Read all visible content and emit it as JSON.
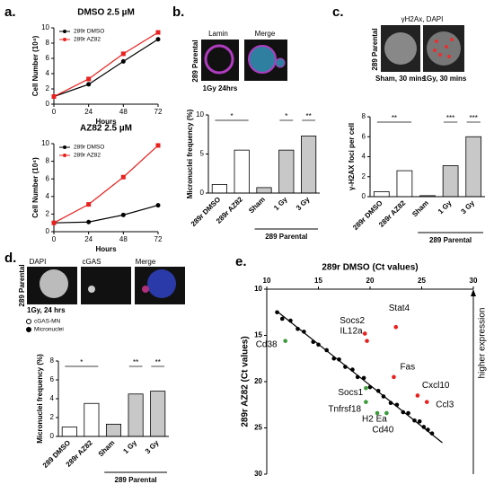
{
  "panel_labels": [
    "a.",
    "b.",
    "c.",
    "d.",
    "e."
  ],
  "image_labels": {
    "b_lamin": "Lamin",
    "b_merge": "Merge",
    "b_side": "289 Parental",
    "b_caption": "1Gy 24hrs",
    "c_title": "γH2Ax, DAPI",
    "c_side": "289 Parental",
    "c_sham": "Sham, 30 mins",
    "c_gy": "1Gy, 30 mins",
    "d_dapi": "DAPI",
    "d_cgas": "cGAS",
    "d_merge": "Merge",
    "d_side": "289 Parental",
    "d_caption": "1Gy, 24 hrs"
  },
  "chart_data": [
    {
      "type": "line",
      "title": "DMSO 2.5 µM",
      "xlabel": "Hours",
      "ylabel": "Cell Number (10⁴)",
      "x": [
        0,
        24,
        48,
        72
      ],
      "xlim": [
        0,
        72
      ],
      "xticks": [
        0,
        24,
        48,
        72
      ],
      "ylim": [
        0,
        10
      ],
      "yticks": [
        0,
        2,
        4,
        6,
        8,
        10
      ],
      "legend": "upper left",
      "series": [
        {
          "name": "289r DMSO",
          "color": "#000000",
          "marker": "circle",
          "values": [
            1,
            2.6,
            5.6,
            8.5
          ]
        },
        {
          "name": "289r AZ82",
          "color": "#e8211f",
          "marker": "square",
          "values": [
            1,
            3.3,
            6.6,
            9.4
          ]
        }
      ]
    },
    {
      "type": "line",
      "title": "AZ82 2.5 µM",
      "xlabel": "Hours",
      "ylabel": "Cell Number (10⁴)",
      "x": [
        0,
        24,
        48,
        72
      ],
      "xlim": [
        0,
        72
      ],
      "xticks": [
        0,
        24,
        48,
        72
      ],
      "ylim": [
        0,
        10
      ],
      "yticks": [
        0,
        2,
        4,
        6,
        8,
        10
      ],
      "legend": "upper left",
      "series": [
        {
          "name": "289r DMSO",
          "color": "#000000",
          "marker": "circle",
          "values": [
            1,
            1.1,
            1.9,
            3.0
          ]
        },
        {
          "name": "289r AZ82",
          "color": "#e8211f",
          "marker": "square",
          "values": [
            1,
            3.1,
            6.2,
            9.8
          ]
        }
      ]
    },
    {
      "type": "bar",
      "ylabel": "Micronuclei frequency (%)",
      "categories": [
        "289r DMSO",
        "289r AZ82",
        "Sham",
        "1 Gy",
        "3 Gy"
      ],
      "values": [
        1.1,
        5.5,
        0.7,
        5.5,
        7.3
      ],
      "colors": [
        "#ffffff",
        "#ffffff",
        "#c8c8c8",
        "#c8c8c8",
        "#c8c8c8"
      ],
      "ylim": [
        0,
        10
      ],
      "yticks": [
        0,
        5,
        10
      ],
      "significance": [
        null,
        "*",
        null,
        "*",
        "**"
      ],
      "group_label": "289 Parental"
    },
    {
      "type": "bar",
      "ylabel": "γ-H2AX foci per cell",
      "categories": [
        "289r DMSO",
        "289r AZ82",
        "Sham",
        "1 Gy",
        "3 Gy"
      ],
      "values": [
        0.5,
        2.6,
        0.1,
        3.1,
        6.0
      ],
      "colors": [
        "#ffffff",
        "#ffffff",
        "#c8c8c8",
        "#c8c8c8",
        "#c8c8c8"
      ],
      "ylim": [
        0,
        8
      ],
      "yticks": [
        0,
        2,
        4,
        6,
        8
      ],
      "significance": [
        null,
        "**",
        null,
        "***",
        "***"
      ],
      "group_label": "289 Parental"
    },
    {
      "type": "bar",
      "ylabel": "Micronuclei frequency (%)",
      "categories": [
        "289 DMSO",
        "289r AZ82",
        "Sham",
        "1 Gy",
        "3 Gy"
      ],
      "values": [
        1.0,
        3.5,
        1.3,
        4.5,
        4.8
      ],
      "colors": [
        "#ffffff",
        "#ffffff",
        "#c8c8c8",
        "#c8c8c8",
        "#c8c8c8"
      ],
      "ylim": [
        0,
        8
      ],
      "yticks": [
        0,
        2,
        4,
        6,
        8
      ],
      "significance": [
        null,
        "*",
        null,
        "**",
        "**"
      ],
      "group_label": "289 Parental",
      "marker_legend": [
        "cGAS-MN",
        "Micronuclei"
      ]
    },
    {
      "type": "scatter",
      "xlabel": "289r DMSO (Ct values)",
      "ylabel": "289r AZ82 (Ct values)",
      "xlim": [
        10,
        30
      ],
      "xticks": [
        10,
        15,
        20,
        25,
        30
      ],
      "ylim": [
        10,
        30
      ],
      "yticks": [
        10,
        15,
        20,
        25,
        30
      ],
      "y_inverted": true,
      "x_axis": "top",
      "annotation": "higher expression",
      "points": [
        {
          "color": "#000000",
          "x": [
            11,
            11.5,
            12.3,
            13,
            13.6,
            14.5,
            15,
            15.8,
            16.5,
            17,
            17.6,
            18.3,
            18.8,
            19.4,
            20,
            20.8,
            21.3,
            22,
            22.6,
            23.2,
            23.7,
            24.3,
            24.8,
            25.2,
            25.6,
            26
          ],
          "y": [
            12.5,
            13.2,
            13.4,
            14.3,
            14.6,
            15.7,
            16.0,
            16.6,
            17.5,
            17.6,
            18.4,
            18.7,
            19.5,
            19.6,
            20.6,
            21.0,
            21.6,
            22.3,
            22.5,
            23.3,
            23.4,
            24.2,
            24.3,
            24.9,
            25.2,
            25.6
          ]
        },
        {
          "color": "#e8211f",
          "labels": [
            "Socs2",
            "IL12a",
            "Stat4",
            "Fas",
            "Cxcl10",
            "Ccl3"
          ],
          "x": [
            19.5,
            19.7,
            22.5,
            22.3,
            24.6,
            25.5
          ],
          "y": [
            14.8,
            15.6,
            14.1,
            19.5,
            21.5,
            22.2
          ]
        },
        {
          "color": "#3a9a3a",
          "labels": [
            "Cd38",
            "Socs1",
            "Tnfrsf18",
            "H2 Ea",
            "Cd40"
          ],
          "x": [
            11.8,
            19.6,
            19.6,
            20.7,
            21.6
          ],
          "y": [
            15.6,
            20.7,
            22.2,
            23.4,
            23.4
          ]
        }
      ],
      "fit": {
        "x": [
          11,
          27
        ],
        "y": [
          12.4,
          26.6
        ]
      }
    }
  ]
}
